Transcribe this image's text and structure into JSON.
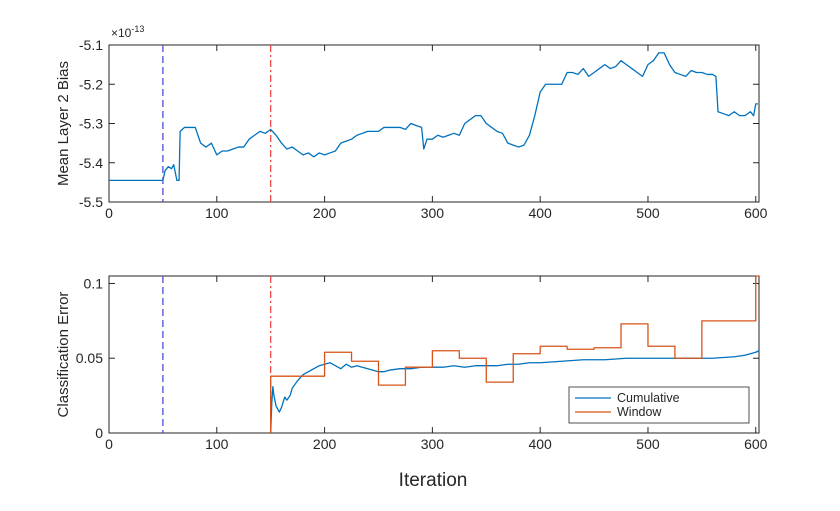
{
  "figure": {
    "xlabel": "Iteration"
  },
  "chart_data": [
    {
      "type": "line",
      "ylabel": "Mean Layer 2 Bias",
      "y_exponent": "×10^-13",
      "y_exponent_base": "×10",
      "y_exponent_power": "-13",
      "xlim": [
        0,
        603
      ],
      "ylim": [
        -5.5,
        -5.1
      ],
      "xticks": [
        "0",
        "100",
        "200",
        "300",
        "400",
        "500",
        "600"
      ],
      "yticks": [
        "-5.5",
        "-5.4",
        "-5.3",
        "-5.2",
        "-5.1"
      ],
      "grid": false,
      "vlines": [
        {
          "x": 50,
          "style": "dashed",
          "color": "#3f3fd9"
        },
        {
          "x": 150,
          "style": "dash-dot",
          "color": "#ee3b3b"
        }
      ],
      "series": [
        {
          "color": "#0072bd",
          "x": [
            0,
            50,
            52,
            55,
            58,
            60,
            63,
            65,
            66,
            68,
            70,
            75,
            80,
            85,
            90,
            95,
            100,
            105,
            110,
            115,
            120,
            125,
            130,
            135,
            140,
            145,
            150,
            155,
            160,
            165,
            170,
            175,
            180,
            185,
            190,
            195,
            200,
            205,
            210,
            215,
            220,
            225,
            230,
            235,
            240,
            245,
            250,
            255,
            260,
            265,
            270,
            275,
            280,
            285,
            290,
            292,
            295,
            300,
            305,
            310,
            315,
            320,
            325,
            330,
            335,
            340,
            345,
            350,
            355,
            360,
            365,
            370,
            375,
            380,
            385,
            390,
            393,
            395,
            400,
            405,
            410,
            415,
            420,
            425,
            430,
            435,
            440,
            445,
            450,
            455,
            460,
            465,
            470,
            475,
            480,
            485,
            490,
            495,
            500,
            505,
            510,
            515,
            520,
            525,
            530,
            535,
            540,
            545,
            550,
            555,
            560,
            563,
            565,
            570,
            575,
            580,
            585,
            590,
            595,
            598,
            600,
            602
          ],
          "y": [
            -5.445,
            -5.445,
            -5.42,
            -5.41,
            -5.415,
            -5.405,
            -5.445,
            -5.445,
            -5.32,
            -5.315,
            -5.31,
            -5.31,
            -5.31,
            -5.35,
            -5.36,
            -5.35,
            -5.38,
            -5.37,
            -5.37,
            -5.365,
            -5.36,
            -5.36,
            -5.34,
            -5.33,
            -5.32,
            -5.325,
            -5.315,
            -5.33,
            -5.35,
            -5.365,
            -5.36,
            -5.37,
            -5.38,
            -5.375,
            -5.385,
            -5.375,
            -5.38,
            -5.375,
            -5.37,
            -5.35,
            -5.345,
            -5.34,
            -5.33,
            -5.325,
            -5.32,
            -5.32,
            -5.32,
            -5.31,
            -5.31,
            -5.31,
            -5.31,
            -5.315,
            -5.3,
            -5.305,
            -5.31,
            -5.365,
            -5.34,
            -5.34,
            -5.33,
            -5.335,
            -5.33,
            -5.325,
            -5.33,
            -5.3,
            -5.29,
            -5.28,
            -5.28,
            -5.3,
            -5.31,
            -5.32,
            -5.325,
            -5.35,
            -5.355,
            -5.36,
            -5.355,
            -5.33,
            -5.3,
            -5.28,
            -5.22,
            -5.2,
            -5.2,
            -5.2,
            -5.2,
            -5.17,
            -5.17,
            -5.175,
            -5.16,
            -5.18,
            -5.17,
            -5.16,
            -5.15,
            -5.16,
            -5.155,
            -5.14,
            -5.15,
            -5.16,
            -5.17,
            -5.18,
            -5.15,
            -5.14,
            -5.12,
            -5.12,
            -5.15,
            -5.17,
            -5.175,
            -5.18,
            -5.165,
            -5.17,
            -5.17,
            -5.175,
            -5.175,
            -5.18,
            -5.27,
            -5.275,
            -5.28,
            -5.27,
            -5.28,
            -5.28,
            -5.27,
            -5.28,
            -5.25,
            -5.25
          ]
        }
      ]
    },
    {
      "type": "line",
      "ylabel": "Classification Error",
      "xlim": [
        0,
        603
      ],
      "ylim": [
        0,
        0.105
      ],
      "xticks": [
        "0",
        "100",
        "200",
        "300",
        "400",
        "500",
        "600"
      ],
      "yticks": [
        "0",
        "0.05",
        "0.1"
      ],
      "ytick_values": [
        0,
        0.05,
        0.1
      ],
      "grid": false,
      "legend_position": "bottom-right",
      "vlines": [
        {
          "x": 50,
          "style": "dashed",
          "color": "#3f3fd9"
        },
        {
          "x": 150,
          "style": "dash-dot",
          "color": "#ee3b3b"
        }
      ],
      "series": [
        {
          "name": "Cumulative",
          "color": "#0072bd",
          "x": [
            150,
            151,
            152,
            153,
            155,
            158,
            160,
            163,
            165,
            168,
            170,
            175,
            180,
            185,
            190,
            195,
            200,
            205,
            210,
            215,
            220,
            225,
            230,
            235,
            240,
            245,
            250,
            255,
            260,
            270,
            280,
            290,
            300,
            310,
            320,
            330,
            340,
            350,
            360,
            370,
            380,
            390,
            400,
            420,
            440,
            460,
            480,
            500,
            520,
            540,
            560,
            580,
            590,
            600,
            603
          ],
          "y": [
            0,
            0.02,
            0.031,
            0.025,
            0.018,
            0.014,
            0.017,
            0.024,
            0.022,
            0.025,
            0.03,
            0.035,
            0.039,
            0.041,
            0.043,
            0.045,
            0.046,
            0.047,
            0.045,
            0.043,
            0.046,
            0.044,
            0.045,
            0.044,
            0.043,
            0.042,
            0.041,
            0.041,
            0.042,
            0.043,
            0.043,
            0.044,
            0.044,
            0.044,
            0.045,
            0.044,
            0.045,
            0.045,
            0.045,
            0.046,
            0.046,
            0.047,
            0.047,
            0.048,
            0.049,
            0.049,
            0.05,
            0.05,
            0.05,
            0.05,
            0.05,
            0.051,
            0.052,
            0.054,
            0.055
          ]
        },
        {
          "name": "Window",
          "color": "#d95319",
          "x": [
            150,
            150,
            175,
            175,
            200,
            200,
            225,
            225,
            250,
            250,
            275,
            275,
            300,
            300,
            325,
            325,
            350,
            350,
            375,
            375,
            400,
            400,
            425,
            425,
            450,
            450,
            475,
            475,
            500,
            500,
            525,
            525,
            550,
            550,
            575,
            575,
            600,
            600,
            603
          ],
          "y": [
            0,
            0.038,
            0.038,
            0.038,
            0.038,
            0.054,
            0.054,
            0.048,
            0.048,
            0.032,
            0.032,
            0.044,
            0.044,
            0.055,
            0.055,
            0.05,
            0.05,
            0.034,
            0.034,
            0.053,
            0.053,
            0.058,
            0.058,
            0.056,
            0.056,
            0.057,
            0.057,
            0.073,
            0.073,
            0.058,
            0.058,
            0.05,
            0.05,
            0.075,
            0.075,
            0.075,
            0.075,
            0.105,
            0.105
          ]
        }
      ]
    }
  ]
}
